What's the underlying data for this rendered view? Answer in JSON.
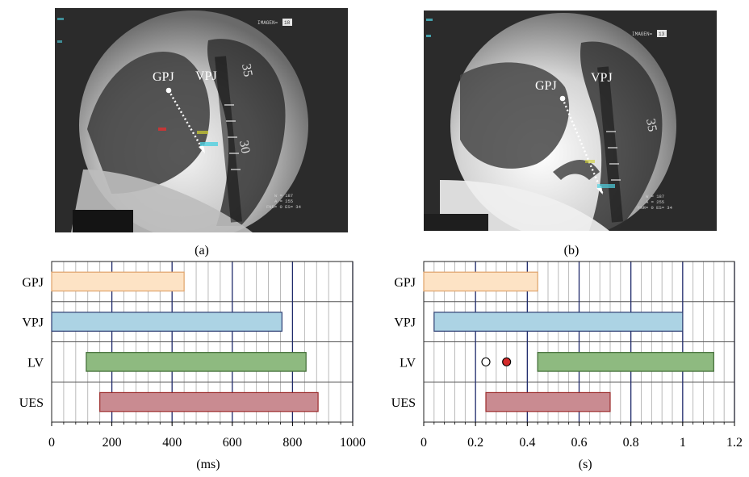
{
  "panels": [
    {
      "id": "a",
      "caption": "(a)",
      "gpj_label": "GPJ",
      "vpj_label": "VPJ",
      "image_tag": "IMAGEN=",
      "image_num": "18",
      "readout": [
        "W = 187",
        "A = 255",
        "FNR= 0 ES= 34"
      ],
      "spine_marks": [
        "35",
        "30"
      ]
    },
    {
      "id": "b",
      "caption": "(b)",
      "gpj_label": "GPJ",
      "vpj_label": "VPJ",
      "image_tag": "IMAGEN=",
      "image_num": "13",
      "readout": [
        "W = 187",
        "A = 255",
        "FNR= 0 ES= 34"
      ],
      "spine_marks": [
        "35"
      ]
    }
  ],
  "chart_data": [
    {
      "type": "bar",
      "orientation": "horizontal",
      "categories": [
        "GPJ",
        "VPJ",
        "LV",
        "UES"
      ],
      "series": [
        {
          "category": "GPJ",
          "start": 0,
          "end": 440,
          "color": "#fde3c5"
        },
        {
          "category": "VPJ",
          "start": 0,
          "end": 765,
          "color": "#acd3e4"
        },
        {
          "category": "LV",
          "start": 115,
          "end": 845,
          "color": "#8eba80"
        },
        {
          "category": "UES",
          "start": 160,
          "end": 885,
          "color": "#c98b91"
        }
      ],
      "xlim": [
        0,
        1000
      ],
      "xticks": [
        0,
        200,
        400,
        600,
        800,
        1000
      ],
      "xtick_labels": [
        "0",
        "200",
        "400",
        "600",
        "800",
        "1000"
      ],
      "minor_step": 40,
      "major_step": 200,
      "xlabel": "(ms)",
      "markers": [],
      "grid": true
    },
    {
      "type": "bar",
      "orientation": "horizontal",
      "categories": [
        "GPJ",
        "VPJ",
        "LV",
        "UES"
      ],
      "series": [
        {
          "category": "GPJ",
          "start": 0,
          "end": 0.44,
          "color": "#fde3c5"
        },
        {
          "category": "VPJ",
          "start": 0.04,
          "end": 1.0,
          "color": "#acd3e4"
        },
        {
          "category": "LV",
          "start": 0.44,
          "end": 1.12,
          "color": "#8eba80"
        },
        {
          "category": "UES",
          "start": 0.24,
          "end": 0.72,
          "color": "#c98b91"
        }
      ],
      "xlim": [
        0,
        1.2
      ],
      "xticks": [
        0,
        0.2,
        0.4,
        0.6,
        0.8,
        1,
        1.2
      ],
      "xtick_labels": [
        "0",
        "0.2",
        "0.4",
        "0.6",
        "0.8",
        "1",
        "1.2"
      ],
      "minor_step": 0.04,
      "major_step": 0.2,
      "xlabel": "(s)",
      "markers": [
        {
          "category": "LV",
          "x": 0.24,
          "fill": "#ffffff"
        },
        {
          "category": "LV",
          "x": 0.32,
          "fill": "#d42a2a"
        }
      ],
      "grid": true
    }
  ],
  "colors": {
    "grid_major": "#1f2a6b",
    "grid_minor": "#a9a9a9",
    "row_line": "#555555",
    "bar_border_gpj": "#e0a36a",
    "bar_border_vpj": "#2c3e72",
    "bar_border_lv": "#3e6a33",
    "bar_border_ues": "#9b2a2a"
  }
}
